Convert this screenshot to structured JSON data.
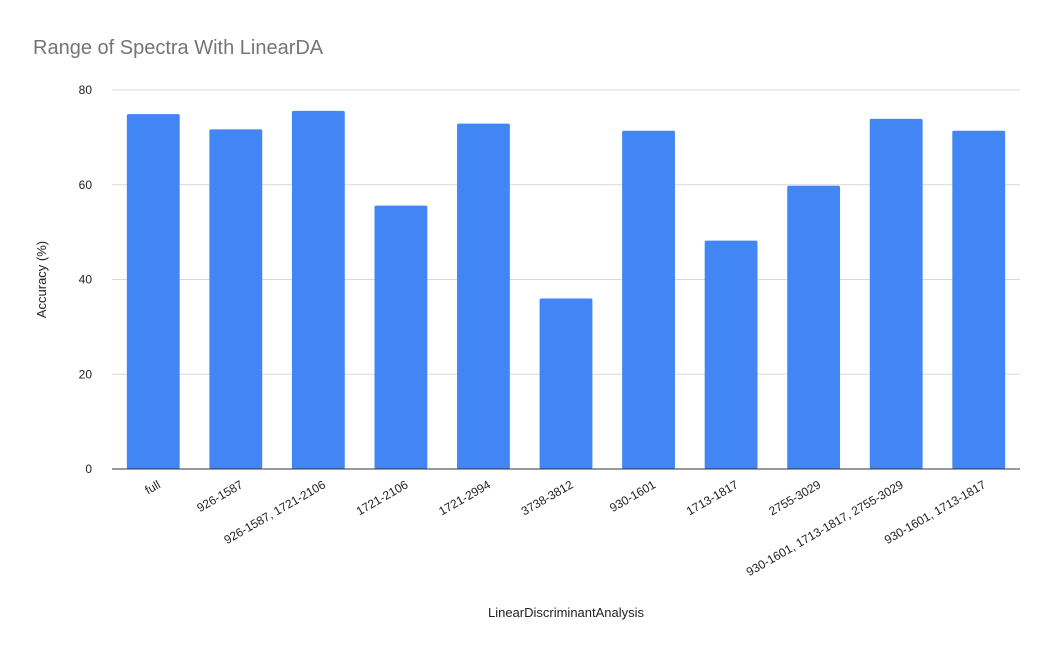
{
  "chart_data": {
    "type": "bar",
    "title": "Range of Spectra With LinearDA",
    "xlabel": "LinearDiscriminantAnalysis",
    "ylabel": "Accuracy  (%)",
    "categories": [
      "full",
      "926-1587",
      "926-1587, 1721-2106",
      "1721-2106",
      "1721-2994",
      "3738-3812",
      "930-1601",
      "1713-1817",
      "2755-3029",
      "930-1601, 1713-1817, 2755-3029",
      "930-1601, 1713-1817"
    ],
    "values": [
      74.9,
      71.7,
      75.6,
      55.6,
      72.9,
      36.0,
      71.4,
      48.2,
      59.8,
      73.9,
      71.4
    ],
    "ylim": [
      0,
      80
    ],
    "yticks": [
      0,
      20,
      40,
      60,
      80
    ],
    "grid": true,
    "bar_color": "#4285f4"
  }
}
